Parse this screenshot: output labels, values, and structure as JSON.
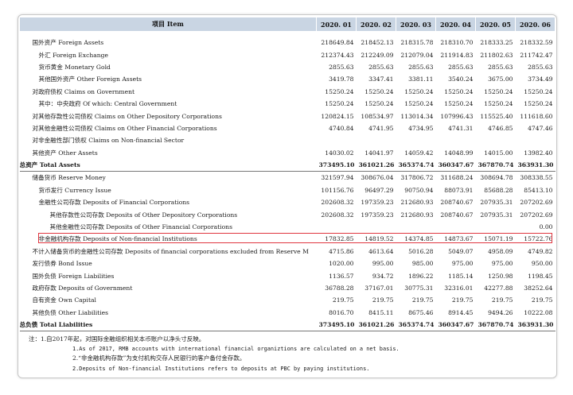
{
  "table": {
    "header": [
      "项目 Item",
      "2020. 01",
      "2020. 02",
      "2020. 03",
      "2020. 04",
      "2020. 05",
      "2020. 06"
    ],
    "rows": [
      {
        "label": "国外资产  Foreign Assets",
        "level": 1,
        "values": [
          "218649.84",
          "218452.13",
          "218315.78",
          "218310.70",
          "218333.25",
          "218332.59"
        ]
      },
      {
        "label": "外汇  Foreign Exchange",
        "level": 2,
        "values": [
          "212374.43",
          "212249.09",
          "212079.04",
          "211914.83",
          "211802.63",
          "211742.47"
        ]
      },
      {
        "label": "货币黄金  Monetary Gold",
        "level": 2,
        "values": [
          "2855.63",
          "2855.63",
          "2855.63",
          "2855.63",
          "2855.63",
          "2855.63"
        ]
      },
      {
        "label": "其他国外资产  Other Foreign Assets",
        "level": 2,
        "values": [
          "3419.78",
          "3347.41",
          "3381.11",
          "3540.24",
          "3675.00",
          "3734.49"
        ]
      },
      {
        "label": "对政府债权  Claims on Government",
        "level": 1,
        "values": [
          "15250.24",
          "15250.24",
          "15250.24",
          "15250.24",
          "15250.24",
          "15250.24"
        ]
      },
      {
        "label": "其中：中央政府  Of which: Central Government",
        "level": 2,
        "values": [
          "15250.24",
          "15250.24",
          "15250.24",
          "15250.24",
          "15250.24",
          "15250.24"
        ]
      },
      {
        "label": "对其他存款性公司债权  Claims on Other Depository Corporations",
        "level": 1,
        "values": [
          "120824.15",
          "108534.97",
          "113014.34",
          "107996.43",
          "115525.40",
          "111618.60"
        ]
      },
      {
        "label": "对其他金融性公司债权  Claims on Other Financial Corporations",
        "level": 1,
        "values": [
          "4740.84",
          "4741.95",
          "4734.95",
          "4741.31",
          "4746.85",
          "4747.46"
        ]
      },
      {
        "label": "对非金融性部门债权  Claims on Non-financial Sector",
        "level": 1,
        "values": [
          "",
          "",
          "",
          "",
          "",
          ""
        ]
      },
      {
        "label": "其他资产  Other Assets",
        "level": 1,
        "values": [
          "14030.02",
          "14041.97",
          "14059.42",
          "14048.99",
          "14015.00",
          "13982.40"
        ]
      },
      {
        "label": "总资产  Total Assets",
        "level": 0,
        "bold": true,
        "values": [
          "373495.10",
          "361021.26",
          "365374.74",
          "360347.67",
          "367870.74",
          "363931.30"
        ]
      },
      {
        "label": "储备货币  Reserve Money",
        "level": 1,
        "values": [
          "321597.94",
          "308676.04",
          "317806.72",
          "311688.24",
          "308694.78",
          "308338.55"
        ]
      },
      {
        "label": "货币发行  Currency Issue",
        "level": 2,
        "values": [
          "101156.76",
          "96497.29",
          "90750.94",
          "88073.91",
          "85688.28",
          "85413.10"
        ]
      },
      {
        "label": "金融性公司存款  Deposits of Financial Corporations",
        "level": 2,
        "values": [
          "202608.32",
          "197359.23",
          "212680.93",
          "208740.67",
          "207935.31",
          "207202.69"
        ]
      },
      {
        "label": "其他存款性公司存款  Deposits of Other Depository Corporations",
        "level": 3,
        "values": [
          "202608.32",
          "197359.23",
          "212680.93",
          "208740.67",
          "207935.31",
          "207202.69"
        ]
      },
      {
        "label": "其他金融性公司存款  Deposits of Other Financial Corporations",
        "level": 3,
        "values": [
          "",
          "",
          "",
          "",
          "",
          "0.00"
        ]
      },
      {
        "label": "非金融机构存款  Deposits of Non-financial Institutions",
        "level": 2,
        "highlight": true,
        "values": [
          "17832.85",
          "14819.52",
          "14374.85",
          "14873.67",
          "15071.19",
          "15722.76"
        ]
      },
      {
        "label": "不计入储备货币的金融性公司存款  Deposits of financial corporations excluded from Reserve M",
        "level": 1,
        "values": [
          "4715.86",
          "4613.64",
          "5016.28",
          "5049.07",
          "4958.09",
          "4749.82"
        ]
      },
      {
        "label": "发行债券  Bond Issue",
        "level": 1,
        "values": [
          "1020.00",
          "995.00",
          "985.00",
          "975.00",
          "975.00",
          "950.00"
        ]
      },
      {
        "label": "国外负债  Foreign Liabilities",
        "level": 1,
        "values": [
          "1136.57",
          "934.72",
          "1896.22",
          "1185.14",
          "1250.98",
          "1198.45"
        ]
      },
      {
        "label": "政府存款  Deposits of Government",
        "level": 1,
        "values": [
          "36788.28",
          "37167.01",
          "30775.31",
          "32316.01",
          "42277.88",
          "38252.64"
        ]
      },
      {
        "label": "自有资金  Own Capital",
        "level": 1,
        "values": [
          "219.75",
          "219.75",
          "219.75",
          "219.75",
          "219.75",
          "219.75"
        ]
      },
      {
        "label": "其他负债  Other Liabilities",
        "level": 1,
        "values": [
          "8016.70",
          "8415.11",
          "8675.46",
          "8914.45",
          "9494.26",
          "10222.08"
        ]
      },
      {
        "label": "总负债  Total Liabilities",
        "level": 0,
        "bold": true,
        "values": [
          "373495.10",
          "361021.26",
          "365374.74",
          "360347.67",
          "367870.74",
          "363931.30"
        ]
      }
    ]
  },
  "notes": [
    "注：1.自2017年起，对国际金融组织相关本币账户以净头寸反映。",
    "1.As of 2017, RMB accounts with international financial organiztions are calculated on a net basis.",
    "2.“非金融机构存款”为支付机构交存人民银行的客户备付金存款。",
    "2.Deposits of Non-financial Institutions refers to deposits at PBC by paying institutions."
  ]
}
